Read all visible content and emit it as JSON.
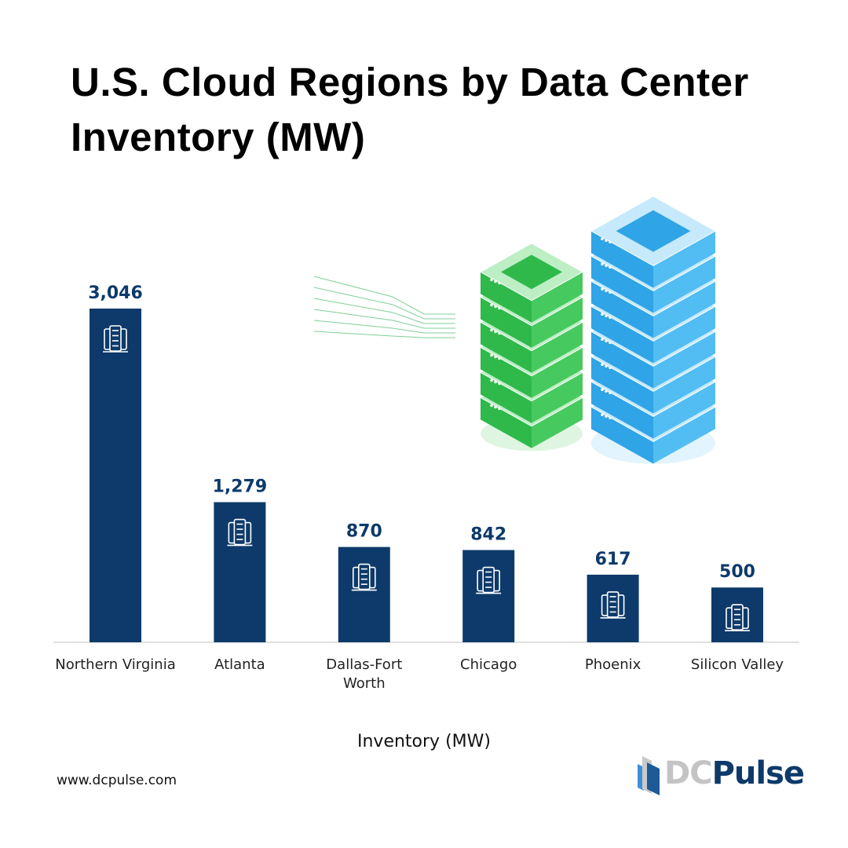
{
  "chart_data": {
    "type": "bar",
    "title": "U.S. Cloud Regions by Data Center Inventory (MW)",
    "xlabel": "Inventory (MW)",
    "ylabel": "",
    "categories": [
      "Northern Virginia",
      "Atlanta",
      "Dallas-Fort Worth",
      "Chicago",
      "Phoenix",
      "Silicon Valley"
    ],
    "values": [
      3046,
      1279,
      870,
      842,
      617,
      500
    ],
    "data_labels": [
      "3,046",
      "1,279",
      "870",
      "842",
      "617",
      "500"
    ],
    "ylim": [
      0,
      3046
    ],
    "grid": false,
    "bar_color": "#0d3a6a",
    "bar_icon": "server-rack-icon"
  },
  "footer": {
    "website": "www.dcpulse.com",
    "logo_text_dc": "DC",
    "logo_text_pulse": "Pulse"
  },
  "illustration": {
    "icon": "server-stacks-illustration",
    "colors": [
      "#3cc44e",
      "#3fb0ef"
    ]
  }
}
